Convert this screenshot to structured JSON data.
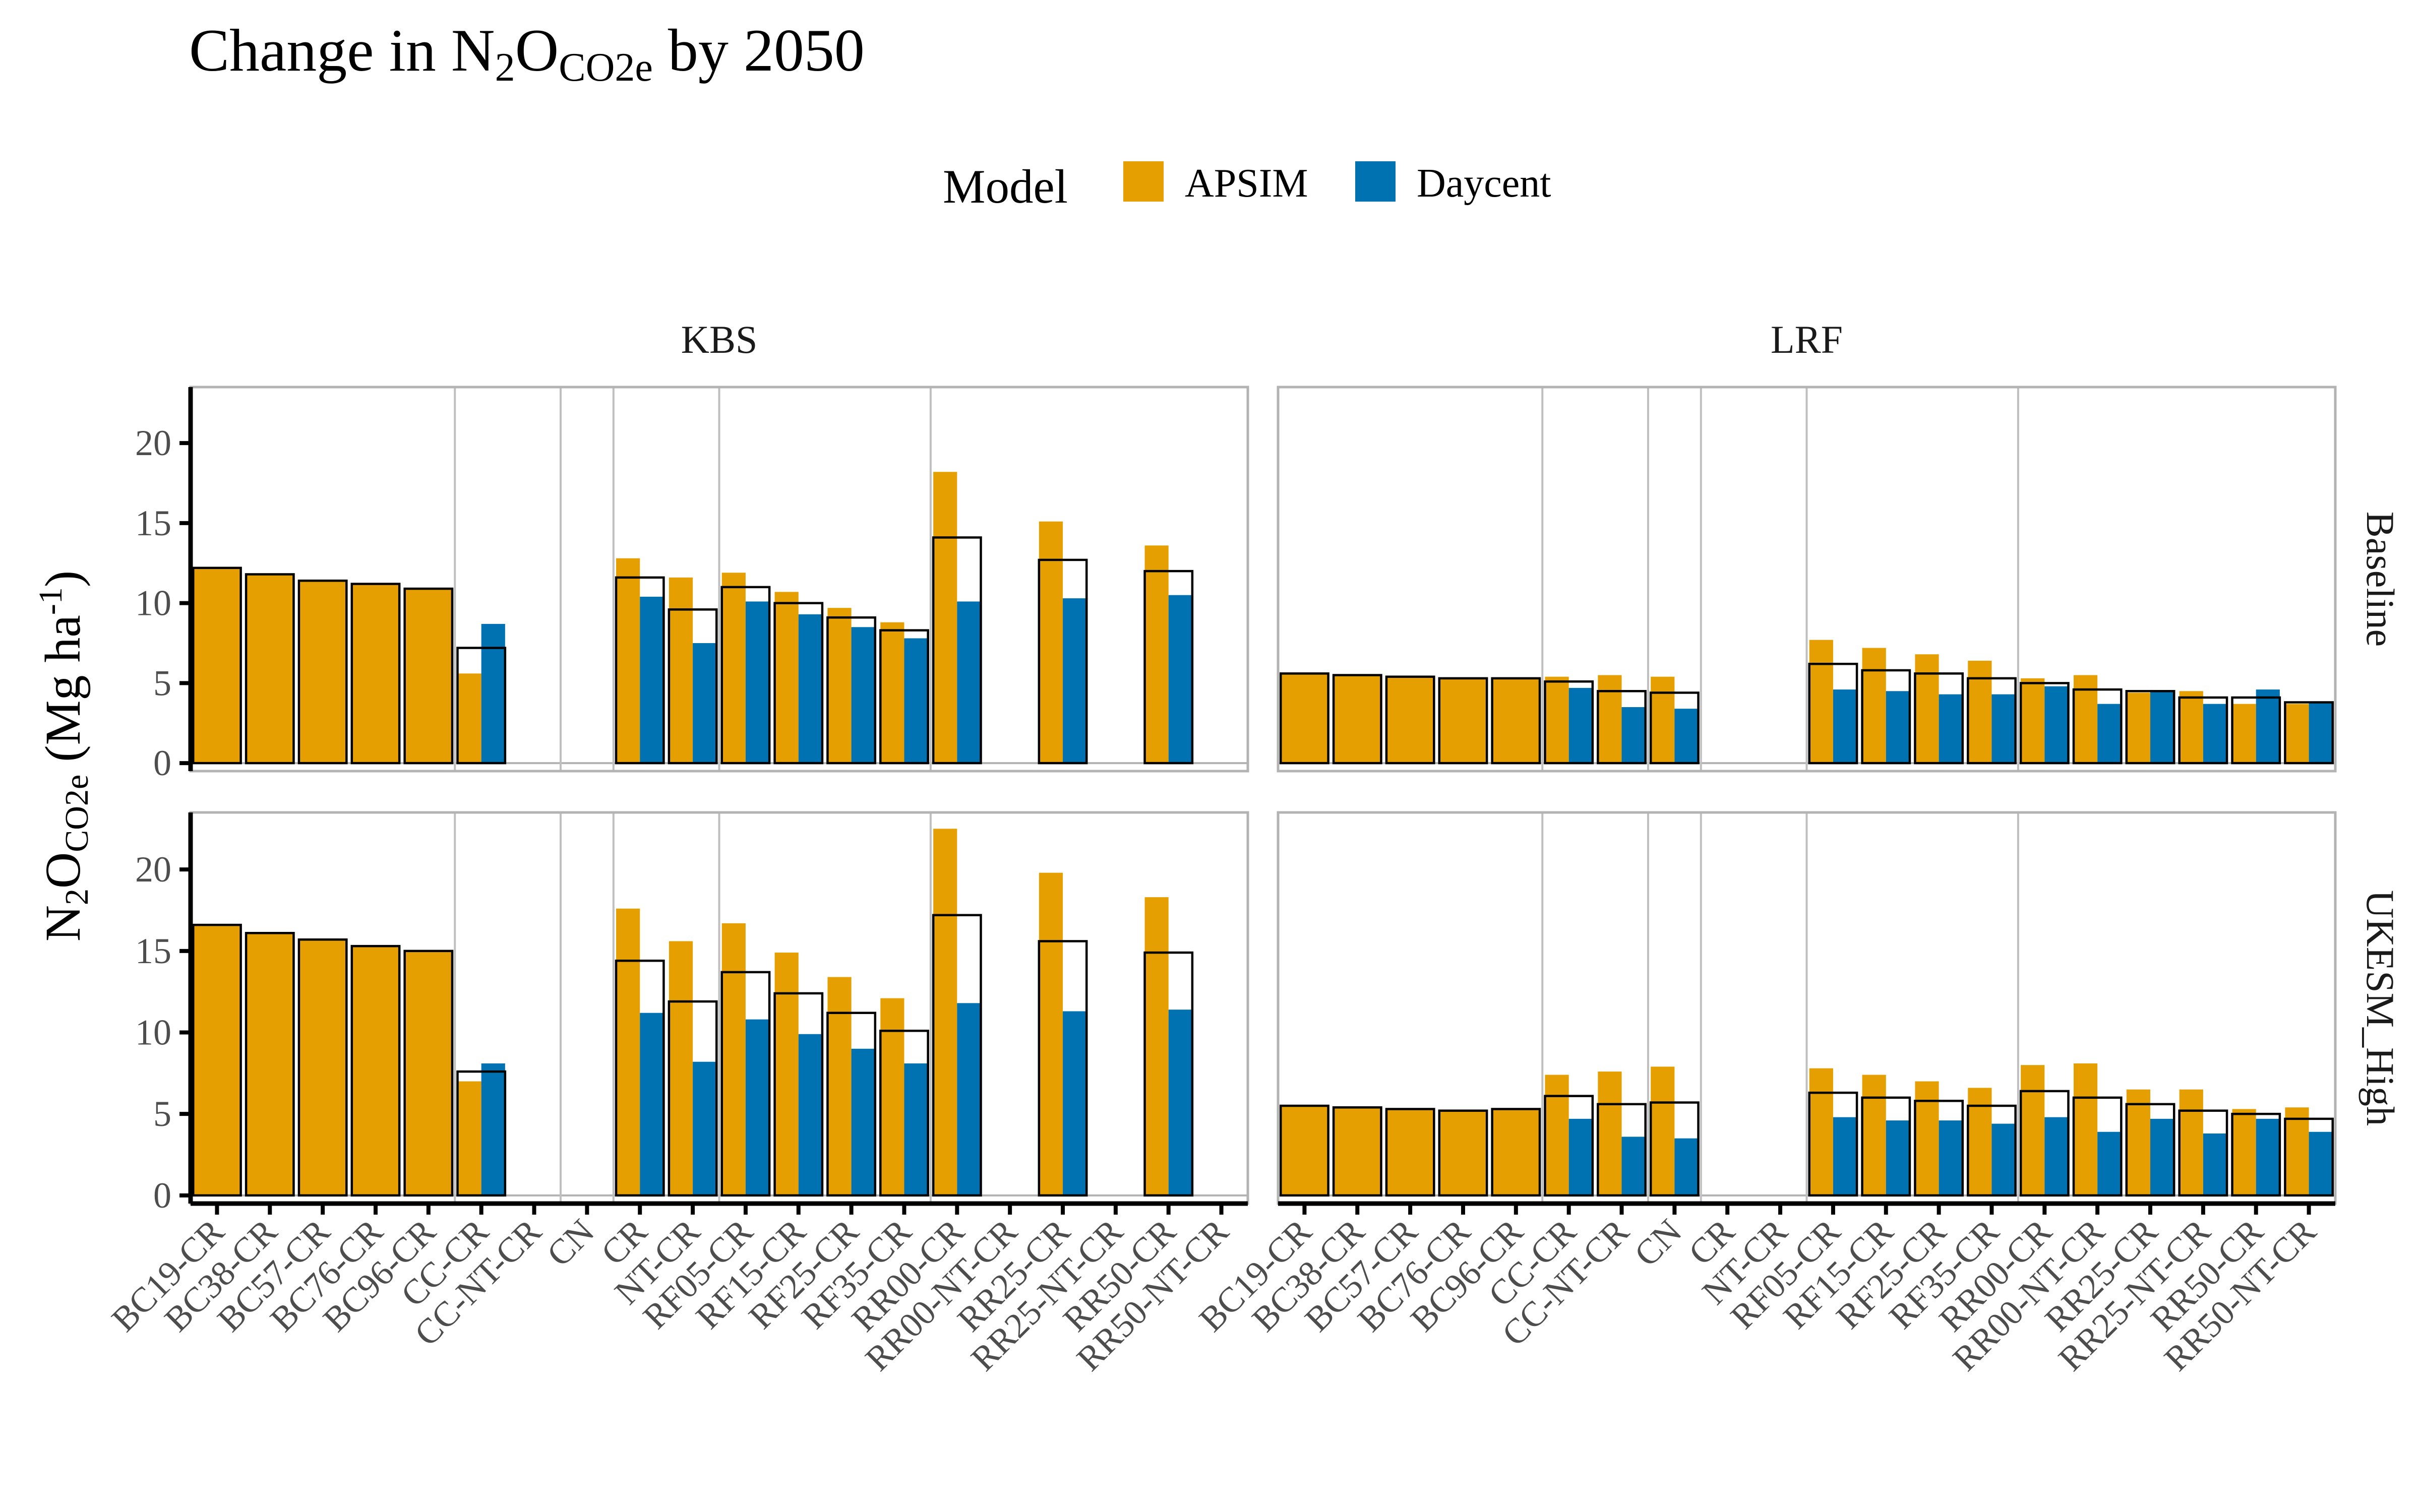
{
  "title": {
    "main_prefix": "Change in N",
    "sub2": "2",
    "main_mid": "O",
    "sub_co2e": "CO2e",
    "main_suffix": " by 2050"
  },
  "legend": {
    "title": "Model",
    "items": [
      {
        "label": "APSIM",
        "color": "#E69F00"
      },
      {
        "label": "Daycent",
        "color": "#0072B2"
      }
    ]
  },
  "y_axis": {
    "label_prefix": "N",
    "label_sub2": "2",
    "label_mid": "O",
    "label_sub": "CO2e",
    "label_suffix": " (Mg ha",
    "label_sup": "-1",
    "label_end": ")",
    "ticks": [
      0,
      5,
      10,
      15,
      20
    ],
    "range": [
      -0.5,
      23.5
    ]
  },
  "chart_data": {
    "type": "bar",
    "title": "Change in N2O CO2e by 2050",
    "ylabel": "N2O CO2e (Mg ha -1)",
    "legend_position": "top",
    "grid": false,
    "facet_columns": [
      "KBS",
      "LRF"
    ],
    "facet_rows": [
      "Baseline",
      "UKESM_High"
    ],
    "series": [
      {
        "name": "APSIM",
        "color": "#E69F00"
      },
      {
        "name": "Daycent",
        "color": "#0072B2"
      }
    ],
    "panels": [
      {
        "column": "KBS",
        "row": "Baseline",
        "categories": [
          "BC19-CR",
          "BC38-CR",
          "BC57-CR",
          "BC76-CR",
          "BC96-CR",
          "CC-CR",
          "CC-NT-CR",
          "CN",
          "CR",
          "NT-CR",
          "RF05-CR",
          "RF15-CR",
          "RF25-CR",
          "RF35-CR",
          "RR00-CR",
          "RR00-NT-CR",
          "RR25-CR",
          "RR25-NT-CR",
          "RR50-CR",
          "RR50-NT-CR"
        ],
        "group_dividers_after": [
          "BC96-CR",
          "CC-NT-CR",
          "CN",
          "NT-CR",
          "RF35-CR"
        ],
        "APSIM": [
          12.2,
          11.8,
          11.4,
          11.2,
          10.9,
          5.6,
          null,
          null,
          12.8,
          11.6,
          11.9,
          10.7,
          9.7,
          8.8,
          18.2,
          null,
          15.1,
          null,
          13.6,
          null
        ],
        "Daycent": [
          null,
          null,
          null,
          null,
          null,
          8.7,
          null,
          null,
          10.4,
          7.5,
          10.1,
          9.3,
          8.5,
          7.8,
          10.1,
          null,
          10.3,
          null,
          10.5,
          null
        ],
        "Average": [
          null,
          null,
          null,
          null,
          null,
          7.2,
          null,
          null,
          11.6,
          9.6,
          11.0,
          10.0,
          9.1,
          8.3,
          14.1,
          null,
          12.7,
          null,
          12.0,
          null
        ]
      },
      {
        "column": "KBS",
        "row": "UKESM_High",
        "categories": [
          "BC19-CR",
          "BC38-CR",
          "BC57-CR",
          "BC76-CR",
          "BC96-CR",
          "CC-CR",
          "CC-NT-CR",
          "CN",
          "CR",
          "NT-CR",
          "RF05-CR",
          "RF15-CR",
          "RF25-CR",
          "RF35-CR",
          "RR00-CR",
          "RR00-NT-CR",
          "RR25-CR",
          "RR25-NT-CR",
          "RR50-CR",
          "RR50-NT-CR"
        ],
        "group_dividers_after": [
          "BC96-CR",
          "CC-NT-CR",
          "CN",
          "NT-CR",
          "RF35-CR"
        ],
        "APSIM": [
          16.6,
          16.1,
          15.7,
          15.3,
          15.0,
          7.0,
          null,
          null,
          17.6,
          15.6,
          16.7,
          14.9,
          13.4,
          12.1,
          22.5,
          null,
          19.8,
          null,
          18.3,
          null
        ],
        "Daycent": [
          null,
          null,
          null,
          null,
          null,
          8.1,
          null,
          null,
          11.2,
          8.2,
          10.8,
          9.9,
          9.0,
          8.1,
          11.8,
          null,
          11.3,
          null,
          11.4,
          null
        ],
        "Average": [
          null,
          null,
          null,
          null,
          null,
          7.6,
          null,
          null,
          14.4,
          11.9,
          13.7,
          12.4,
          11.2,
          10.1,
          17.2,
          null,
          15.6,
          null,
          14.9,
          null
        ]
      },
      {
        "column": "LRF",
        "row": "Baseline",
        "categories": [
          "BC19-CR",
          "BC38-CR",
          "BC57-CR",
          "BC76-CR",
          "BC96-CR",
          "CC-CR",
          "CC-NT-CR",
          "CN",
          "CR",
          "NT-CR",
          "RF05-CR",
          "RF15-CR",
          "RF25-CR",
          "RF35-CR",
          "RR00-CR",
          "RR00-NT-CR",
          "RR25-CR",
          "RR25-NT-CR",
          "RR50-CR",
          "RR50-NT-CR"
        ],
        "group_dividers_after": [
          "BC96-CR",
          "CC-NT-CR",
          "CN",
          "NT-CR",
          "RF35-CR"
        ],
        "APSIM": [
          5.6,
          5.5,
          5.4,
          5.3,
          5.3,
          5.4,
          5.5,
          5.4,
          null,
          null,
          7.7,
          7.2,
          6.8,
          6.4,
          5.3,
          5.5,
          4.4,
          4.5,
          3.7,
          3.7
        ],
        "Daycent": [
          null,
          null,
          null,
          null,
          null,
          4.7,
          3.5,
          3.4,
          null,
          null,
          4.6,
          4.5,
          4.3,
          4.3,
          4.8,
          3.7,
          4.5,
          3.7,
          4.6,
          3.8
        ],
        "Average": [
          null,
          null,
          null,
          null,
          null,
          5.1,
          4.5,
          4.4,
          null,
          null,
          6.2,
          5.8,
          5.6,
          5.3,
          5.0,
          4.6,
          4.5,
          4.1,
          4.1,
          3.8
        ]
      },
      {
        "column": "LRF",
        "row": "UKESM_High",
        "categories": [
          "BC19-CR",
          "BC38-CR",
          "BC57-CR",
          "BC76-CR",
          "BC96-CR",
          "CC-CR",
          "CC-NT-CR",
          "CN",
          "CR",
          "NT-CR",
          "RF05-CR",
          "RF15-CR",
          "RF25-CR",
          "RF35-CR",
          "RR00-CR",
          "RR00-NT-CR",
          "RR25-CR",
          "RR25-NT-CR",
          "RR50-CR",
          "RR50-NT-CR"
        ],
        "group_dividers_after": [
          "BC96-CR",
          "CC-NT-CR",
          "CN",
          "NT-CR",
          "RF35-CR"
        ],
        "APSIM": [
          5.5,
          5.4,
          5.3,
          5.2,
          5.3,
          7.4,
          7.6,
          7.9,
          null,
          null,
          7.8,
          7.4,
          7.0,
          6.6,
          8.0,
          8.1,
          6.5,
          6.5,
          5.3,
          5.4
        ],
        "Daycent": [
          null,
          null,
          null,
          null,
          null,
          4.7,
          3.6,
          3.5,
          null,
          null,
          4.8,
          4.6,
          4.6,
          4.4,
          4.8,
          3.9,
          4.7,
          3.8,
          4.7,
          3.9
        ],
        "Average": [
          null,
          null,
          null,
          null,
          null,
          6.1,
          5.6,
          5.7,
          null,
          null,
          6.3,
          6.0,
          5.8,
          5.5,
          6.4,
          6.0,
          5.6,
          5.2,
          5.0,
          4.7
        ]
      }
    ]
  }
}
